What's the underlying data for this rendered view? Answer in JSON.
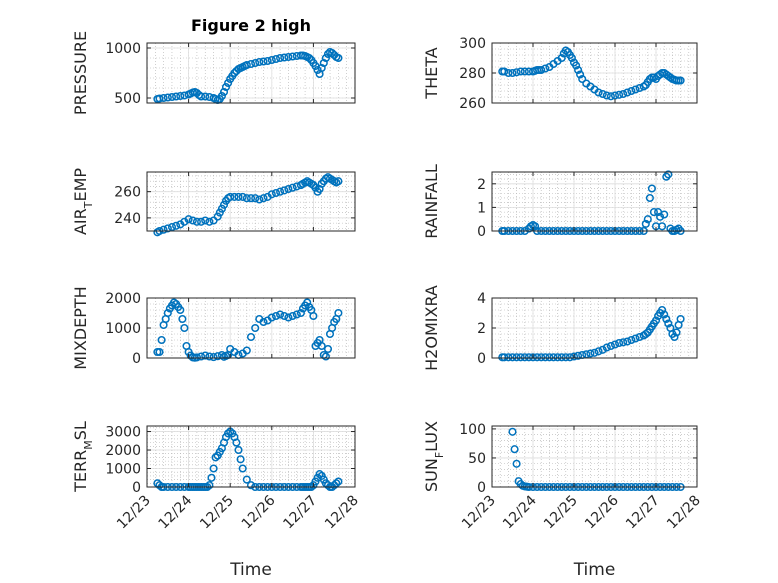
{
  "figure_title": "Figure 2 high",
  "colors": {
    "marker": "#0072BD",
    "axis": "#262626",
    "grid": "#b0b0b0"
  },
  "chart_data": [
    {
      "type": "scatter",
      "name": "PRESSURE",
      "ylabel": {
        "main": "PRESSURE",
        "sub": "",
        "suffix": ""
      },
      "ylim": [
        450,
        1050
      ],
      "yticks": [
        500,
        1000
      ],
      "yticklabels": [
        "500",
        "1000"
      ],
      "minor_grid": true,
      "x": [
        23.25,
        23.3,
        23.4,
        23.5,
        23.6,
        23.7,
        23.8,
        23.9,
        24.0,
        24.05,
        24.1,
        24.15,
        24.2,
        24.25,
        24.3,
        24.4,
        24.5,
        24.6,
        24.65,
        24.7,
        24.75,
        24.8,
        24.85,
        24.9,
        24.95,
        25.0,
        25.05,
        25.1,
        25.15,
        25.2,
        25.25,
        25.3,
        25.35,
        25.4,
        25.5,
        25.6,
        25.7,
        25.8,
        25.9,
        26.0,
        26.1,
        26.2,
        26.3,
        26.4,
        26.5,
        26.6,
        26.7,
        26.75,
        26.8,
        26.85,
        26.9,
        26.95,
        27.0,
        27.05,
        27.1,
        27.15,
        27.2,
        27.25,
        27.3,
        27.35,
        27.4,
        27.45,
        27.5,
        27.55,
        27.6
      ],
      "y": [
        490,
        495,
        500,
        505,
        510,
        515,
        520,
        525,
        535,
        545,
        555,
        560,
        550,
        530,
        515,
        515,
        510,
        500,
        490,
        480,
        490,
        520,
        560,
        610,
        650,
        690,
        720,
        750,
        770,
        790,
        800,
        810,
        820,
        830,
        840,
        850,
        860,
        865,
        870,
        880,
        890,
        900,
        905,
        910,
        915,
        920,
        925,
        925,
        920,
        910,
        900,
        880,
        850,
        820,
        780,
        740,
        800,
        850,
        900,
        940,
        960,
        950,
        930,
        910,
        900
      ]
    },
    {
      "type": "scatter",
      "name": "THETA",
      "ylabel": {
        "main": "THETA",
        "sub": "",
        "suffix": ""
      },
      "ylim": [
        260,
        300
      ],
      "yticks": [
        260,
        280,
        300
      ],
      "yticklabels": [
        "260",
        "280",
        "300"
      ],
      "minor_grid": true,
      "x": [
        23.25,
        23.3,
        23.4,
        23.5,
        23.6,
        23.7,
        23.8,
        23.9,
        24.0,
        24.05,
        24.1,
        24.15,
        24.2,
        24.3,
        24.4,
        24.5,
        24.6,
        24.7,
        24.75,
        24.8,
        24.85,
        24.9,
        24.95,
        25.0,
        25.05,
        25.1,
        25.15,
        25.2,
        25.3,
        25.4,
        25.5,
        25.6,
        25.7,
        25.8,
        25.9,
        26.0,
        26.1,
        26.2,
        26.3,
        26.4,
        26.5,
        26.6,
        26.7,
        26.75,
        26.8,
        26.85,
        26.9,
        26.95,
        27.0,
        27.05,
        27.1,
        27.15,
        27.2,
        27.25,
        27.3,
        27.35,
        27.4,
        27.45,
        27.5,
        27.55,
        27.6
      ],
      "y": [
        281,
        281,
        280,
        280,
        280.5,
        281,
        281,
        281,
        281,
        281.5,
        282,
        282,
        282,
        283,
        284,
        286,
        288,
        290,
        293,
        295,
        294,
        292,
        290,
        287,
        285,
        282,
        279,
        276,
        273,
        271,
        269,
        267,
        266,
        265,
        264.5,
        265,
        265.5,
        266,
        267,
        268,
        269,
        270,
        271,
        272,
        274,
        276,
        277,
        277,
        276,
        278,
        279,
        280,
        280,
        279,
        278,
        277,
        276,
        275.5,
        275,
        275,
        275
      ]
    },
    {
      "type": "scatter",
      "name": "AIR_TEMP",
      "ylabel": {
        "main": "AIR",
        "sub": "T",
        "suffix": "EMP"
      },
      "ylim": [
        230,
        275
      ],
      "yticks": [
        240,
        260
      ],
      "yticklabels": [
        "240",
        "260"
      ],
      "minor_grid": true,
      "x": [
        23.25,
        23.3,
        23.4,
        23.5,
        23.6,
        23.7,
        23.8,
        23.9,
        24.0,
        24.1,
        24.2,
        24.3,
        24.4,
        24.5,
        24.6,
        24.7,
        24.75,
        24.8,
        24.85,
        24.9,
        24.95,
        25.0,
        25.1,
        25.2,
        25.3,
        25.4,
        25.5,
        25.6,
        25.7,
        25.8,
        25.9,
        26.0,
        26.1,
        26.2,
        26.3,
        26.4,
        26.5,
        26.6,
        26.7,
        26.75,
        26.8,
        26.85,
        26.9,
        26.95,
        27.0,
        27.05,
        27.1,
        27.15,
        27.2,
        27.25,
        27.3,
        27.35,
        27.4,
        27.45,
        27.5,
        27.55,
        27.6
      ],
      "y": [
        229,
        230,
        231,
        232,
        233,
        234,
        235,
        237,
        239,
        238,
        237,
        237,
        238,
        237,
        238,
        241,
        244,
        247,
        250,
        253,
        255,
        256,
        256,
        256,
        256,
        255,
        255,
        255,
        254,
        255,
        256,
        258,
        259,
        260,
        261,
        262,
        263,
        264,
        265,
        266,
        267,
        268,
        267,
        266,
        265,
        263,
        260,
        262,
        266,
        268,
        270,
        271,
        270,
        269,
        268,
        267,
        268
      ]
    },
    {
      "type": "scatter",
      "name": "RAINFALL",
      "ylabel": {
        "main": "RAINFALL",
        "sub": "",
        "suffix": ""
      },
      "ylim": [
        0,
        2.5
      ],
      "yticks": [
        0,
        1,
        2
      ],
      "yticklabels": [
        "0",
        "1",
        "2"
      ],
      "minor_grid": true,
      "x": [
        23.25,
        23.3,
        23.4,
        23.5,
        23.6,
        23.7,
        23.8,
        23.9,
        23.95,
        24.0,
        24.05,
        24.1,
        24.2,
        24.3,
        24.4,
        24.5,
        24.6,
        24.7,
        24.8,
        24.9,
        25.0,
        25.1,
        25.2,
        25.3,
        25.4,
        25.5,
        25.6,
        25.7,
        25.8,
        25.9,
        26.0,
        26.1,
        26.2,
        26.3,
        26.4,
        26.5,
        26.6,
        26.7,
        26.75,
        26.8,
        26.85,
        26.9,
        26.95,
        27.0,
        27.05,
        27.1,
        27.15,
        27.2,
        27.25,
        27.3,
        27.35,
        27.4,
        27.45,
        27.5,
        27.55,
        27.6
      ],
      "y": [
        0,
        0,
        0,
        0,
        0,
        0,
        0,
        0.1,
        0.2,
        0.25,
        0.2,
        0,
        0,
        0,
        0,
        0,
        0,
        0,
        0,
        0,
        0,
        0,
        0,
        0,
        0,
        0,
        0,
        0,
        0,
        0,
        0,
        0,
        0,
        0,
        0,
        0,
        0,
        0,
        0.3,
        0.5,
        1.4,
        1.8,
        0.8,
        0.2,
        0.8,
        0.6,
        0.2,
        0.7,
        2.3,
        2.4,
        0.1,
        0,
        0,
        0.05,
        0.1,
        0
      ]
    },
    {
      "type": "scatter",
      "name": "MIXDEPTH",
      "ylabel": {
        "main": "MIXDEPTH",
        "sub": "",
        "suffix": ""
      },
      "ylim": [
        0,
        2000
      ],
      "yticks": [
        0,
        1000,
        2000
      ],
      "yticklabels": [
        "0",
        "1000",
        "2000"
      ],
      "minor_grid": true,
      "x": [
        23.25,
        23.3,
        23.35,
        23.4,
        23.45,
        23.5,
        23.55,
        23.6,
        23.65,
        23.7,
        23.75,
        23.8,
        23.85,
        23.9,
        23.95,
        24.0,
        24.05,
        24.1,
        24.15,
        24.2,
        24.3,
        24.4,
        24.5,
        24.6,
        24.7,
        24.8,
        24.85,
        24.9,
        24.95,
        25.0,
        25.1,
        25.2,
        25.3,
        25.4,
        25.5,
        25.6,
        25.7,
        25.8,
        25.9,
        26.0,
        26.1,
        26.2,
        26.3,
        26.4,
        26.5,
        26.6,
        26.7,
        26.75,
        26.8,
        26.85,
        26.9,
        26.95,
        27.0,
        27.05,
        27.1,
        27.15,
        27.2,
        27.25,
        27.3,
        27.35,
        27.4,
        27.45,
        27.5,
        27.55,
        27.6
      ],
      "y": [
        200,
        200,
        600,
        1100,
        1300,
        1500,
        1650,
        1750,
        1850,
        1800,
        1700,
        1600,
        1300,
        1000,
        400,
        200,
        80,
        20,
        10,
        20,
        50,
        80,
        50,
        30,
        60,
        100,
        40,
        70,
        100,
        300,
        200,
        100,
        150,
        250,
        700,
        1000,
        1300,
        1200,
        1250,
        1350,
        1400,
        1450,
        1400,
        1350,
        1400,
        1450,
        1500,
        1650,
        1750,
        1850,
        1700,
        1600,
        1400,
        400,
        500,
        600,
        400,
        100,
        50,
        300,
        800,
        1000,
        1200,
        1300,
        1500
      ]
    },
    {
      "type": "scatter",
      "name": "H2OMIXRA",
      "ylabel": {
        "main": "H2OMIXRA",
        "sub": "",
        "suffix": ""
      },
      "ylim": [
        0,
        4
      ],
      "yticks": [
        0,
        2,
        4
      ],
      "yticklabels": [
        "0",
        "2",
        "4"
      ],
      "minor_grid": true,
      "x": [
        23.25,
        23.3,
        23.4,
        23.5,
        23.6,
        23.7,
        23.8,
        23.9,
        24.0,
        24.1,
        24.2,
        24.3,
        24.4,
        24.5,
        24.6,
        24.7,
        24.8,
        24.9,
        25.0,
        25.1,
        25.2,
        25.3,
        25.4,
        25.5,
        25.6,
        25.7,
        25.8,
        25.9,
        26.0,
        26.1,
        26.2,
        26.3,
        26.4,
        26.5,
        26.6,
        26.7,
        26.75,
        26.8,
        26.85,
        26.9,
        26.95,
        27.0,
        27.05,
        27.1,
        27.15,
        27.2,
        27.25,
        27.3,
        27.35,
        27.4,
        27.45,
        27.5,
        27.55,
        27.6
      ],
      "y": [
        0.05,
        0.05,
        0.05,
        0.05,
        0.05,
        0.05,
        0.05,
        0.05,
        0.05,
        0.05,
        0.05,
        0.05,
        0.05,
        0.05,
        0.05,
        0.05,
        0.05,
        0.05,
        0.1,
        0.15,
        0.2,
        0.25,
        0.3,
        0.35,
        0.45,
        0.55,
        0.7,
        0.8,
        0.9,
        1.0,
        1.05,
        1.1,
        1.2,
        1.3,
        1.4,
        1.5,
        1.6,
        1.7,
        1.9,
        2.1,
        2.3,
        2.5,
        2.8,
        3.0,
        3.2,
        2.9,
        2.6,
        2.3,
        2.0,
        1.6,
        1.4,
        1.7,
        2.2,
        2.6
      ]
    },
    {
      "type": "scatter",
      "name": "TERR_MSL",
      "ylabel": {
        "main": "TERR",
        "sub": "M",
        "suffix": "SL"
      },
      "ylim": [
        0,
        3300
      ],
      "yticks": [
        0,
        1000,
        2000,
        3000
      ],
      "yticklabels": [
        "0",
        "1000",
        "2000",
        "3000"
      ],
      "minor_grid": true,
      "x": [
        23.25,
        23.3,
        23.35,
        23.4,
        23.5,
        23.6,
        23.7,
        23.8,
        23.9,
        24.0,
        24.05,
        24.1,
        24.15,
        24.2,
        24.25,
        24.3,
        24.35,
        24.4,
        24.45,
        24.5,
        24.55,
        24.6,
        24.65,
        24.7,
        24.75,
        24.8,
        24.85,
        24.9,
        24.95,
        25.0,
        25.05,
        25.1,
        25.15,
        25.2,
        25.25,
        25.3,
        25.4,
        25.5,
        25.6,
        25.7,
        25.8,
        25.9,
        26.0,
        26.1,
        26.2,
        26.3,
        26.4,
        26.5,
        26.6,
        26.7,
        26.75,
        26.8,
        26.85,
        26.9,
        26.95,
        27.0,
        27.05,
        27.1,
        27.15,
        27.2,
        27.25,
        27.3,
        27.35,
        27.4,
        27.45,
        27.5,
        27.55,
        27.6
      ],
      "y": [
        200,
        100,
        0,
        0,
        0,
        0,
        0,
        0,
        0,
        0,
        0,
        0,
        0,
        0,
        0,
        0,
        0,
        0,
        0,
        100,
        500,
        1000,
        1600,
        1700,
        1900,
        2100,
        2400,
        2700,
        2900,
        3000,
        2900,
        2700,
        2400,
        2000,
        1500,
        1000,
        400,
        100,
        0,
        0,
        0,
        0,
        0,
        0,
        0,
        0,
        0,
        0,
        0,
        0,
        0,
        0,
        0,
        0,
        0,
        100,
        300,
        500,
        700,
        600,
        400,
        200,
        100,
        0,
        0,
        100,
        200,
        300
      ]
    },
    {
      "type": "scatter",
      "name": "SUN_FLUX",
      "ylabel": {
        "main": "SUN",
        "sub": "F",
        "suffix": "LUX"
      },
      "ylim": [
        0,
        105
      ],
      "yticks": [
        0,
        50,
        100
      ],
      "yticklabels": [
        "0",
        "50",
        "100"
      ],
      "minor_grid": true,
      "x": [
        23.5,
        23.55,
        23.6,
        23.65,
        23.7,
        23.75,
        23.8,
        23.85,
        23.9,
        24.0,
        24.1,
        24.2,
        24.3,
        24.4,
        24.5,
        24.6,
        24.7,
        24.8,
        24.9,
        25.0,
        25.1,
        25.2,
        25.3,
        25.4,
        25.5,
        25.6,
        25.7,
        25.8,
        25.9,
        26.0,
        26.1,
        26.2,
        26.3,
        26.4,
        26.5,
        26.6,
        26.7,
        26.8,
        26.9,
        27.0,
        27.1,
        27.2,
        27.3,
        27.4,
        27.5,
        27.6
      ],
      "y": [
        95,
        65,
        40,
        10,
        5,
        2,
        1,
        0.5,
        0,
        0,
        0,
        0,
        0,
        0,
        0,
        0,
        0,
        0,
        0,
        0,
        0,
        0,
        0,
        0,
        0,
        0,
        0,
        0,
        0,
        0,
        0,
        0,
        0,
        0,
        0,
        0,
        0,
        0,
        0,
        0,
        0,
        0,
        0,
        0,
        0,
        0
      ]
    }
  ],
  "xaxis": {
    "xlim": [
      23,
      28
    ],
    "ticks": [
      23,
      24,
      25,
      26,
      27,
      28
    ],
    "ticklabels": [
      "12/23",
      "12/24",
      "12/25",
      "12/26",
      "12/27",
      "12/28"
    ],
    "label": "Time"
  }
}
